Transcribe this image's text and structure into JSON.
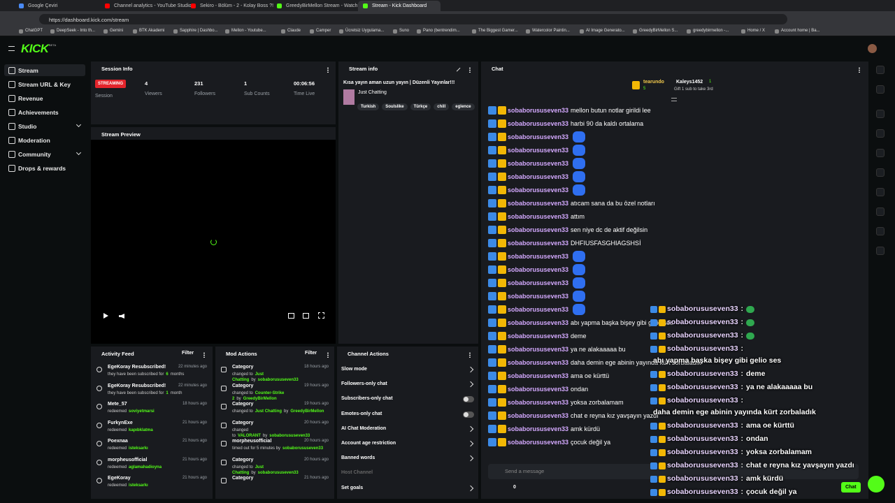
{
  "browser": {
    "tabs": [
      "Google Çeviri",
      "Channel analytics - YouTube Studio",
      "Sekiro - Bölüm - 2 - Kolay Boss ?!",
      "GreedyBirMellon Stream - Watch Live",
      "Stream - Kick Dashboard"
    ],
    "active_tab": 4,
    "url": "https://dashboard.kick.com/stream",
    "bookmarks": [
      "ChatGPT",
      "DeepSeek - Into th...",
      "Gemini",
      "BTK Akademi",
      "Sapphire | Dashbo...",
      "Mellon - Youtube...",
      "Claude",
      "Camper",
      "Ücretsiz Uygulama...",
      "Suno",
      "Pano (bentrendim...",
      "The Biggest Gamer...",
      "Watercolor Paintin...",
      "AI Image Generato...",
      "GreedyBirMellon S...",
      "greedybirmellon -...",
      "Home / X",
      "Account home | Ba..."
    ]
  },
  "header": {
    "logo": "KICK",
    "beta": "BETA"
  },
  "nav": [
    "Stream",
    "Stream URL & Key",
    "Revenue",
    "Achievements",
    "Studio",
    "Moderation",
    "Community",
    "Drops & rewards"
  ],
  "session": {
    "title": "Session Info",
    "badge": "STREAMING",
    "label": "Session",
    "stats": [
      {
        "value": 4,
        "label": "Viewers"
      },
      {
        "value": 231,
        "label": "Followers"
      },
      {
        "value": 1,
        "label": "Sub Counts"
      },
      {
        "value": "00:06:56",
        "label": "Time Live"
      }
    ]
  },
  "stream_info": {
    "title": "Stream info",
    "stream_title": "Kısa yayın aman uzun yayın | Düzenli Yayınlar!!!",
    "category": "Just Chatting",
    "tags": [
      "Turkish",
      "Soulslike",
      "Türkçe",
      "chill",
      "eglence"
    ]
  },
  "preview": {
    "title": "Stream Preview"
  },
  "activity": {
    "title": "Activity Feed",
    "filter": "Filter",
    "items": [
      {
        "name": "EgeKoray Resubscribed!",
        "time": "22 minutes ago",
        "parts": [
          "they have been subscribed for",
          "6",
          "months"
        ]
      },
      {
        "name": "EgeKoray Resubscribed!",
        "time": "22 minutes ago",
        "parts": [
          "they have been subscribed for",
          "1",
          "month"
        ]
      },
      {
        "name": "Mete_57",
        "time": "18 hours ago",
        "parts": [
          "redeemed",
          "soviyetmarsi"
        ]
      },
      {
        "name": "FurkynExe",
        "time": "21 hours ago",
        "parts": [
          "redeemed",
          "kapıbklatma"
        ]
      },
      {
        "name": "Poexnaa",
        "time": "21 hours ago",
        "parts": [
          "redeemed",
          "isteksarkı"
        ]
      },
      {
        "name": "morpheusofficial",
        "time": "21 hours ago",
        "parts": [
          "redeemed",
          "aglamahadioyna"
        ]
      },
      {
        "name": "EgeKoray",
        "time": "21 hours ago",
        "parts": [
          "redeemed",
          "isteksarkı"
        ]
      }
    ]
  },
  "mod_actions": {
    "title": "Mod Actions",
    "filter": "Filter",
    "items": [
      {
        "name": "Category",
        "time": "18 hours ago",
        "parts": [
          "changed to",
          "Just Chatting",
          "by",
          "sobaborususeven33"
        ]
      },
      {
        "name": "Category",
        "time": "19 hours ago",
        "parts": [
          "changed to",
          "Counter-Strike 2",
          "by",
          "GreedyBirMellon"
        ]
      },
      {
        "name": "Category",
        "time": "19 hours ago",
        "parts": [
          "changed to",
          "Just Chatting",
          "by",
          "GreedyBirMellon"
        ]
      },
      {
        "name": "Category",
        "time": "20 hours ago",
        "parts": [
          "changed to",
          "VALORANT",
          "by",
          "sobaborususeven33"
        ]
      },
      {
        "name": "morpheusofficial",
        "time": "20 hours ago",
        "parts": [
          "timed out for 5 minutes by",
          "sobaborususeven33"
        ]
      },
      {
        "name": "Category",
        "time": "20 hours ago",
        "parts": [
          "changed to",
          "Just Chatting",
          "by",
          "sobaborususeven33"
        ]
      },
      {
        "name": "Category",
        "time": "21 hours ago",
        "parts": []
      }
    ]
  },
  "channel_actions": {
    "title": "Channel Actions",
    "items": [
      {
        "label": "Slow mode",
        "control": "chevron"
      },
      {
        "label": "Followers-only chat",
        "control": "chevron"
      },
      {
        "label": "Subscribers-only chat",
        "control": "toggle"
      },
      {
        "label": "Emotes-only chat",
        "control": "toggle"
      },
      {
        "label": "AI Chat Moderation",
        "control": "icon"
      },
      {
        "label": "Account age restriction",
        "control": "chevron"
      },
      {
        "label": "Banned words",
        "control": "chevron"
      },
      {
        "label": "Host Channel",
        "control": "disabled"
      },
      {
        "label": "Set goals",
        "control": "chevron"
      }
    ]
  },
  "chat": {
    "title": "Chat",
    "gifters": [
      {
        "name": "tearundo",
        "count": 5
      },
      {
        "name": "Kaleys1452",
        "count": 1
      }
    ],
    "gift_prompt": "Gift 1 sub to take 3rd",
    "messages": [
      {
        "user": "sobaborususeven33",
        "text": "mellon butun notlar girildi lee"
      },
      {
        "user": "sobaborususeven33",
        "text": "harbi 90 da kaldı ortalama"
      },
      {
        "user": "sobaborususeven33",
        "emote": true
      },
      {
        "user": "sobaborususeven33",
        "emote": true
      },
      {
        "user": "sobaborususeven33",
        "emote": true
      },
      {
        "user": "sobaborususeven33",
        "emote": true
      },
      {
        "user": "sobaborususeven33",
        "emote": true
      },
      {
        "user": "sobaborususeven33",
        "text": "atıcam sana da bu özel notları"
      },
      {
        "user": "sobaborususeven33",
        "text": "attım"
      },
      {
        "user": "sobaborususeven33",
        "text": "sen niye dc de aktif değilsin"
      },
      {
        "user": "sobaborususeven33",
        "text": "DHFIUSFASGHIAGSHSİ"
      },
      {
        "user": "sobaborususeven33",
        "emote": true
      },
      {
        "user": "sobaborususeven33",
        "emote": true
      },
      {
        "user": "sobaborususeven33",
        "emote": true
      },
      {
        "user": "sobaborususeven33",
        "emote": true
      },
      {
        "user": "sobaborususeven33",
        "emote": true
      },
      {
        "user": "sobaborususeven33",
        "text": "abı yapma başka bişey gibi gelio ses"
      },
      {
        "user": "sobaborususeven33",
        "text": "deme"
      },
      {
        "user": "sobaborususeven33",
        "text": "ya ne alakaaaaa bu"
      },
      {
        "user": "sobaborususeven33",
        "text": "daha demin ege abinin yayında kürt zorbaladık"
      },
      {
        "user": "sobaborususeven33",
        "text": "ama oe kürttü"
      },
      {
        "user": "sobaborususeven33",
        "text": "ondan"
      },
      {
        "user": "sobaborususeven33",
        "text": "yoksa zorbalamam"
      },
      {
        "user": "sobaborususeven33",
        "text": "chat e reyna kız yavşayın yazdı"
      },
      {
        "user": "sobaborususeven33",
        "text": "amk kürdü"
      },
      {
        "user": "sobaborususeven33",
        "text": "çocuk değil ya"
      }
    ],
    "input_placeholder": "Send a message",
    "send": "Chat",
    "viewer_count": 0
  },
  "overlay": {
    "separator": ":",
    "messages": [
      {
        "user": "sobaborususeven33",
        "emote": true
      },
      {
        "user": "sobaborususeven33",
        "emote": true
      },
      {
        "user": "sobaborususeven33",
        "emote": true
      },
      {
        "user": "sobaborususeven33",
        "text": "abı yapma başka bişey gibi gelio ses"
      },
      {
        "user": "sobaborususeven33",
        "text": "deme"
      },
      {
        "user": "sobaborususeven33",
        "text": "ya ne alakaaaaa bu"
      },
      {
        "user": "sobaborususeven33",
        "text": "daha demin ege abinin yayında kürt zorbaladık"
      },
      {
        "user": "sobaborususeven33",
        "text": "ama oe kürttü"
      },
      {
        "user": "sobaborususeven33",
        "text": "ondan"
      },
      {
        "user": "sobaborususeven33",
        "text": "yoksa zorbalamam"
      },
      {
        "user": "sobaborususeven33",
        "text": "chat e reyna kız yavşayın yazdı"
      },
      {
        "user": "sobaborususeven33",
        "text": "amk kürdü"
      },
      {
        "user": "sobaborususeven33",
        "text": "çocuk değil ya"
      }
    ]
  }
}
